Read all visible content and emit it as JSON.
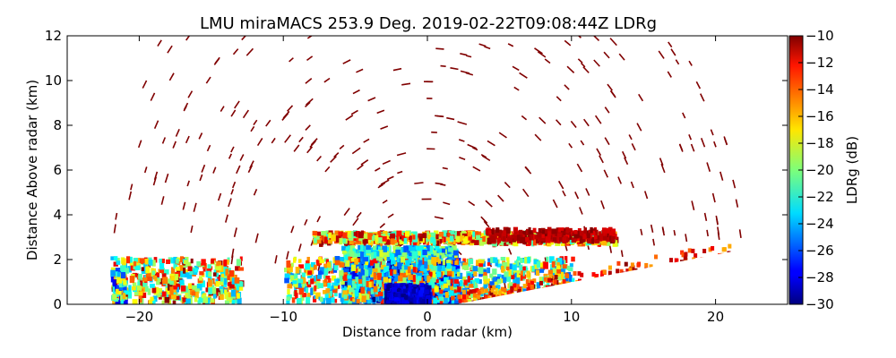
{
  "chart_data": {
    "type": "heatmap",
    "title": "LMU miraMACS 253.9 Deg. 2019-02-22T09:08:44Z  LDRg",
    "xlabel": "Distance from radar (km)",
    "ylabel": "Distance Above radar  (km)",
    "colorbar_label": "LDRg (dB)",
    "xlim": [
      -25,
      25
    ],
    "ylim": [
      0,
      12
    ],
    "xticks": [
      -20,
      -10,
      0,
      10,
      20
    ],
    "yticks": [
      0,
      2,
      4,
      6,
      8,
      10,
      12
    ],
    "clim": [
      -30,
      -10
    ],
    "cticks": [
      -30,
      -28,
      -26,
      -24,
      -22,
      -20,
      -18,
      -16,
      -14,
      -12,
      -10
    ],
    "colormap": "jet",
    "scan": {
      "azimuth_deg": 253.9,
      "timestamp": "2019-02-22T09:08:44Z",
      "field": "LDRg"
    },
    "features": [
      {
        "name": "sparse high-LDR returns aloft",
        "ldr_db": -10,
        "x_range": [
          -22,
          22
        ],
        "y_range": [
          0,
          12
        ]
      },
      {
        "name": "bright band",
        "ldr_db": -18,
        "x_range": [
          -8,
          13
        ],
        "y_range": [
          2.7,
          3.1
        ]
      },
      {
        "name": "low-LDR precipitation core",
        "ldr_db": -28,
        "x_range": [
          -6,
          2
        ],
        "y_range": [
          0,
          2.5
        ]
      },
      {
        "name": "near-surface mixed returns",
        "ldr_db": -22,
        "x_range": [
          -22,
          -13
        ],
        "y_range": [
          0,
          2
        ]
      }
    ]
  }
}
